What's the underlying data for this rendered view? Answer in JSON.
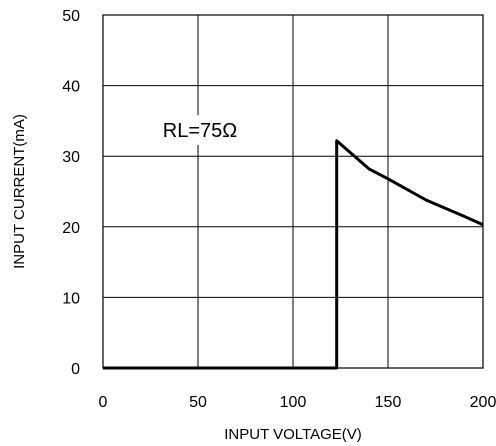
{
  "chart_data": {
    "type": "line",
    "xlabel": "INPUT VOLTAGE(V)",
    "ylabel": "INPUT CURRENT(mA)",
    "xlim": [
      0,
      200
    ],
    "ylim": [
      0,
      50
    ],
    "x_ticks": [
      "0",
      "50",
      "100",
      "150",
      "200"
    ],
    "y_ticks": [
      "0",
      "10",
      "20",
      "30",
      "40",
      "50"
    ],
    "grid": true,
    "annotation": "RL=75Ω",
    "series": [
      {
        "x": [
          0,
          123,
          123,
          140,
          150,
          170,
          190,
          200
        ],
        "y": [
          0,
          0,
          32.2,
          28.2,
          26.8,
          23.8,
          21.5,
          20.3
        ]
      }
    ]
  }
}
